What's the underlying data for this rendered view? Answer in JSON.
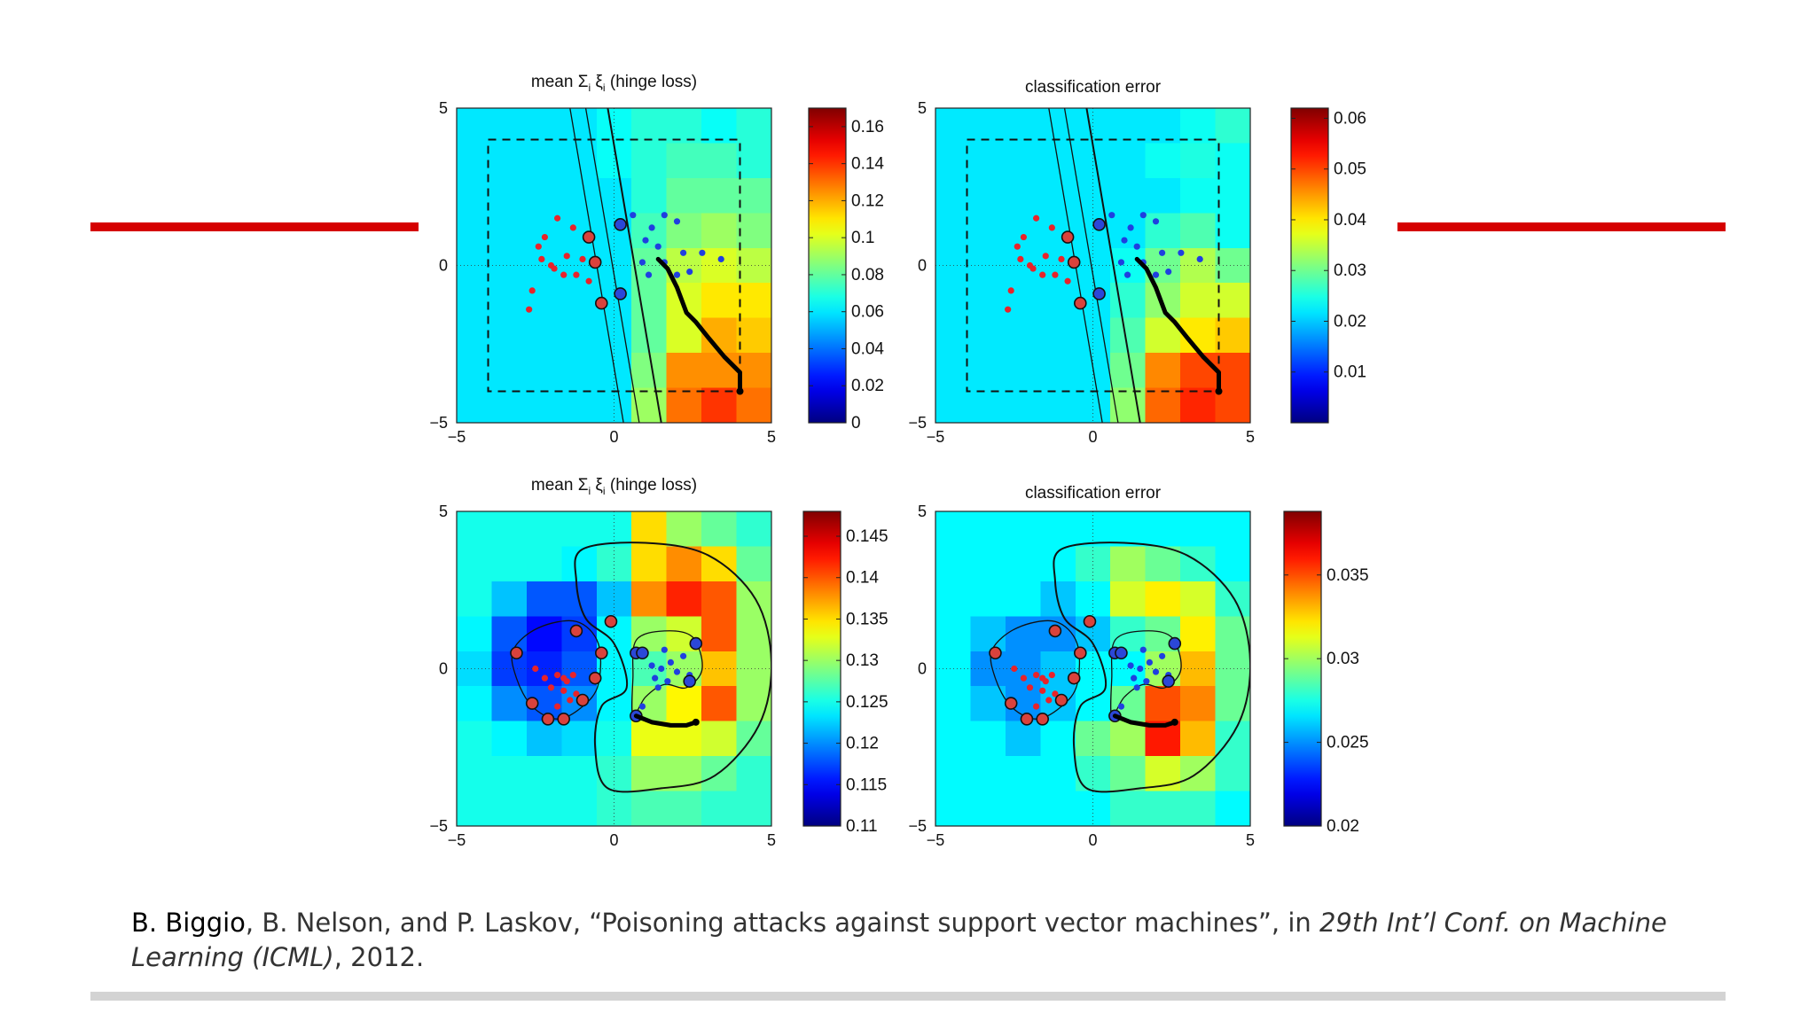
{
  "decoration": {
    "accent_color": "#d50000",
    "bar_color": "#d3d3d3"
  },
  "chart_data": [
    {
      "type": "heatmap",
      "title": "mean Σ",
      "title_sub1": "i",
      "title_mid": " ξ",
      "title_sub2": "i",
      "title_tail": " (hinge loss)",
      "xlim": [
        -5,
        5
      ],
      "ylim": [
        -5,
        5
      ],
      "xticks": [
        "−5",
        "0",
        "5"
      ],
      "yticks": [
        "5",
        "0",
        "−5"
      ],
      "colorbar": {
        "min": 0,
        "max": 0.17,
        "ticks": [
          "0.16",
          "0.14",
          "0.12",
          "0.1",
          "0.08",
          "0.06",
          "0.04",
          "0.02",
          "0"
        ],
        "tick_values": [
          0.16,
          0.14,
          0.12,
          0.1,
          0.08,
          0.06,
          0.04,
          0.02,
          0
        ]
      },
      "kernel": "linear",
      "search_box": {
        "x": [
          -4,
          4
        ],
        "y": [
          -4,
          4
        ]
      },
      "boundary_lines": [
        {
          "x_at_top": -0.2,
          "x_at_bottom": 1.5
        },
        {
          "x_at_top": -1.4,
          "x_at_bottom": 0.3
        },
        {
          "x_at_top": -0.9,
          "x_at_bottom": 0.8
        }
      ],
      "class_red": [
        [
          -2.4,
          0.6
        ],
        [
          -2.2,
          0.9
        ],
        [
          -1.8,
          1.5
        ],
        [
          -1.3,
          1.2
        ],
        [
          -2.0,
          0.0
        ],
        [
          -1.6,
          -0.3
        ],
        [
          -2.6,
          -0.8
        ],
        [
          -2.7,
          -1.4
        ],
        [
          -1.2,
          -0.3
        ],
        [
          -1.0,
          0.2
        ],
        [
          -0.8,
          -0.5
        ],
        [
          -2.3,
          0.2
        ],
        [
          -1.9,
          -0.1
        ],
        [
          -1.5,
          0.3
        ]
      ],
      "class_blue": [
        [
          0.6,
          1.6
        ],
        [
          1.2,
          1.2
        ],
        [
          1.6,
          1.6
        ],
        [
          2.0,
          1.4
        ],
        [
          1.0,
          0.8
        ],
        [
          1.4,
          0.6
        ],
        [
          2.2,
          0.4
        ],
        [
          2.8,
          0.4
        ],
        [
          3.4,
          0.2
        ],
        [
          0.9,
          0.1
        ],
        [
          1.6,
          0.1
        ],
        [
          2.0,
          -0.3
        ],
        [
          2.4,
          -0.2
        ],
        [
          1.1,
          -0.3
        ]
      ],
      "support_vectors": [
        [
          -0.8,
          0.9
        ],
        [
          -0.6,
          0.1
        ],
        [
          -0.4,
          -1.2
        ],
        [
          0.2,
          1.3
        ],
        [
          0.2,
          -0.9
        ]
      ],
      "attack_path": [
        [
          1.4,
          0.2
        ],
        [
          1.7,
          -0.1
        ],
        [
          2.0,
          -0.7
        ],
        [
          2.3,
          -1.5
        ],
        [
          2.6,
          -1.8
        ],
        [
          3.0,
          -2.3
        ],
        [
          3.5,
          -2.9
        ],
        [
          4.0,
          -3.4
        ],
        [
          4.0,
          -4.0
        ]
      ],
      "field": [
        [
          0.06,
          0.06,
          0.06,
          0.06,
          0.065,
          0.07,
          0.07,
          0.065,
          0.07
        ],
        [
          0.06,
          0.06,
          0.06,
          0.06,
          0.065,
          0.07,
          0.075,
          0.075,
          0.07
        ],
        [
          0.06,
          0.06,
          0.06,
          0.06,
          0.06,
          0.07,
          0.08,
          0.08,
          0.08
        ],
        [
          0.06,
          0.06,
          0.06,
          0.06,
          0.06,
          0.075,
          0.085,
          0.09,
          0.085
        ],
        [
          0.06,
          0.06,
          0.06,
          0.06,
          0.06,
          0.08,
          0.095,
          0.1,
          0.095
        ],
        [
          0.06,
          0.06,
          0.06,
          0.06,
          0.06,
          0.08,
          0.1,
          0.11,
          0.11
        ],
        [
          0.06,
          0.06,
          0.06,
          0.06,
          0.06,
          0.08,
          0.1,
          0.12,
          0.115
        ],
        [
          0.06,
          0.06,
          0.06,
          0.06,
          0.06,
          0.085,
          0.125,
          0.125,
          0.125
        ],
        [
          0.06,
          0.06,
          0.06,
          0.06,
          0.06,
          0.09,
          0.13,
          0.14,
          0.13
        ]
      ]
    },
    {
      "type": "heatmap",
      "title": "classification error",
      "xlim": [
        -5,
        5
      ],
      "ylim": [
        -5,
        5
      ],
      "xticks": [
        "−5",
        "0",
        "5"
      ],
      "yticks": [
        "5",
        "0",
        "−5"
      ],
      "colorbar": {
        "min": 0,
        "max": 0.062,
        "ticks": [
          "0.06",
          "0.05",
          "0.04",
          "0.03",
          "0.02",
          "0.01"
        ],
        "tick_values": [
          0.06,
          0.05,
          0.04,
          0.03,
          0.02,
          0.01
        ]
      },
      "kernel": "linear",
      "search_box": {
        "x": [
          -4,
          4
        ],
        "y": [
          -4,
          4
        ]
      },
      "boundary_lines": [
        {
          "x_at_top": -0.2,
          "x_at_bottom": 1.5
        },
        {
          "x_at_top": -1.4,
          "x_at_bottom": 0.3
        },
        {
          "x_at_top": -0.9,
          "x_at_bottom": 0.8
        }
      ],
      "class_red": [
        [
          -2.4,
          0.6
        ],
        [
          -2.2,
          0.9
        ],
        [
          -1.8,
          1.5
        ],
        [
          -1.3,
          1.2
        ],
        [
          -2.0,
          0.0
        ],
        [
          -1.6,
          -0.3
        ],
        [
          -2.6,
          -0.8
        ],
        [
          -2.7,
          -1.4
        ],
        [
          -1.2,
          -0.3
        ],
        [
          -1.0,
          0.2
        ],
        [
          -0.8,
          -0.5
        ],
        [
          -2.3,
          0.2
        ],
        [
          -1.9,
          -0.1
        ],
        [
          -1.5,
          0.3
        ]
      ],
      "class_blue": [
        [
          0.6,
          1.6
        ],
        [
          1.2,
          1.2
        ],
        [
          1.6,
          1.6
        ],
        [
          2.0,
          1.4
        ],
        [
          1.0,
          0.8
        ],
        [
          1.4,
          0.6
        ],
        [
          2.2,
          0.4
        ],
        [
          2.8,
          0.4
        ],
        [
          3.4,
          0.2
        ],
        [
          0.9,
          0.1
        ],
        [
          1.6,
          0.1
        ],
        [
          2.0,
          -0.3
        ],
        [
          2.4,
          -0.2
        ],
        [
          1.1,
          -0.3
        ]
      ],
      "support_vectors": [
        [
          -0.8,
          0.9
        ],
        [
          -0.6,
          0.1
        ],
        [
          -0.4,
          -1.2
        ],
        [
          0.2,
          1.3
        ],
        [
          0.2,
          -0.9
        ]
      ],
      "attack_path": [
        [
          1.4,
          0.2
        ],
        [
          1.7,
          -0.1
        ],
        [
          2.0,
          -0.7
        ],
        [
          2.3,
          -1.5
        ],
        [
          2.6,
          -1.8
        ],
        [
          3.0,
          -2.3
        ],
        [
          3.5,
          -2.9
        ],
        [
          4.0,
          -3.4
        ],
        [
          4.0,
          -4.0
        ]
      ],
      "field": [
        [
          0.022,
          0.022,
          0.022,
          0.022,
          0.022,
          0.022,
          0.022,
          0.024,
          0.026
        ],
        [
          0.022,
          0.022,
          0.022,
          0.022,
          0.022,
          0.022,
          0.024,
          0.025,
          0.024
        ],
        [
          0.022,
          0.022,
          0.022,
          0.022,
          0.022,
          0.022,
          0.022,
          0.024,
          0.024
        ],
        [
          0.022,
          0.022,
          0.022,
          0.022,
          0.022,
          0.022,
          0.026,
          0.028,
          0.024
        ],
        [
          0.022,
          0.022,
          0.022,
          0.022,
          0.022,
          0.024,
          0.03,
          0.034,
          0.03
        ],
        [
          0.022,
          0.022,
          0.022,
          0.022,
          0.022,
          0.026,
          0.032,
          0.036,
          0.036
        ],
        [
          0.022,
          0.022,
          0.022,
          0.022,
          0.022,
          0.028,
          0.036,
          0.04,
          0.042
        ],
        [
          0.022,
          0.022,
          0.022,
          0.022,
          0.022,
          0.03,
          0.046,
          0.05,
          0.05
        ],
        [
          0.022,
          0.022,
          0.022,
          0.022,
          0.022,
          0.032,
          0.048,
          0.052,
          0.05
        ]
      ]
    },
    {
      "type": "heatmap",
      "title": "mean Σ",
      "title_sub1": "i",
      "title_mid": " ξ",
      "title_sub2": "i",
      "title_tail": " (hinge loss)",
      "xlim": [
        -5,
        5
      ],
      "ylim": [
        -5,
        5
      ],
      "xticks": [
        "−5",
        "0",
        "5"
      ],
      "yticks": [
        "5",
        "0",
        "−5"
      ],
      "colorbar": {
        "min": 0.11,
        "max": 0.148,
        "ticks": [
          "0.145",
          "0.14",
          "0.135",
          "0.13",
          "0.125",
          "0.12",
          "0.115",
          "0.11"
        ],
        "tick_values": [
          0.145,
          0.14,
          0.135,
          0.13,
          0.125,
          0.12,
          0.115,
          0.11
        ]
      },
      "kernel": "rbf",
      "class_red": [
        [
          -2.5,
          0.0
        ],
        [
          -2.2,
          -0.3
        ],
        [
          -1.8,
          -0.2
        ],
        [
          -1.5,
          -0.4
        ],
        [
          -1.3,
          -0.2
        ],
        [
          -2.0,
          -0.6
        ],
        [
          -1.6,
          -0.7
        ],
        [
          -1.2,
          -0.8
        ],
        [
          -1.4,
          -1.0
        ],
        [
          -1.8,
          -1.2
        ],
        [
          -1.2,
          1.2
        ],
        [
          -1.6,
          -0.3
        ]
      ],
      "class_blue": [
        [
          1.2,
          0.1
        ],
        [
          1.5,
          0.0
        ],
        [
          1.8,
          0.2
        ],
        [
          2.0,
          -0.1
        ],
        [
          1.3,
          -0.3
        ],
        [
          1.7,
          -0.4
        ],
        [
          1.0,
          0.5
        ],
        [
          2.2,
          0.4
        ],
        [
          1.6,
          0.6
        ],
        [
          1.4,
          -0.6
        ],
        [
          2.4,
          -0.2
        ],
        [
          0.9,
          -1.2
        ]
      ],
      "support_vectors": [
        [
          -3.1,
          0.5
        ],
        [
          -2.6,
          -1.1
        ],
        [
          -2.1,
          -1.6
        ],
        [
          -1.6,
          -1.6
        ],
        [
          -1.0,
          -1.0
        ],
        [
          -0.6,
          -0.3
        ],
        [
          -0.4,
          0.5
        ],
        [
          -1.2,
          1.2
        ],
        [
          -0.1,
          1.5
        ],
        [
          0.7,
          0.5
        ],
        [
          0.9,
          0.5
        ],
        [
          2.6,
          0.8
        ],
        [
          2.4,
          -0.4
        ],
        [
          0.7,
          -1.5
        ]
      ],
      "attack_path": [
        [
          0.7,
          -1.5
        ],
        [
          1.2,
          -1.7
        ],
        [
          1.8,
          -1.8
        ],
        [
          2.3,
          -1.8
        ],
        [
          2.6,
          -1.7
        ]
      ],
      "field": [
        [
          0.125,
          0.125,
          0.125,
          0.125,
          0.125,
          0.135,
          0.13,
          0.128,
          0.126
        ],
        [
          0.125,
          0.125,
          0.125,
          0.124,
          0.126,
          0.135,
          0.138,
          0.135,
          0.128
        ],
        [
          0.125,
          0.122,
          0.118,
          0.118,
          0.122,
          0.138,
          0.142,
          0.14,
          0.13
        ],
        [
          0.124,
          0.118,
          0.115,
          0.117,
          0.124,
          0.13,
          0.132,
          0.14,
          0.13
        ],
        [
          0.123,
          0.117,
          0.116,
          0.118,
          0.124,
          0.127,
          0.13,
          0.136,
          0.13
        ],
        [
          0.124,
          0.12,
          0.118,
          0.12,
          0.124,
          0.13,
          0.134,
          0.14,
          0.13
        ],
        [
          0.125,
          0.124,
          0.122,
          0.123,
          0.125,
          0.133,
          0.133,
          0.132,
          0.128
        ],
        [
          0.125,
          0.125,
          0.125,
          0.125,
          0.126,
          0.13,
          0.13,
          0.128,
          0.126
        ],
        [
          0.125,
          0.125,
          0.125,
          0.125,
          0.126,
          0.127,
          0.127,
          0.126,
          0.126
        ]
      ]
    },
    {
      "type": "heatmap",
      "title": "classification error",
      "xlim": [
        -5,
        5
      ],
      "ylim": [
        -5,
        5
      ],
      "xticks": [
        "−5",
        "0",
        "5"
      ],
      "yticks": [
        "5",
        "0",
        "−5"
      ],
      "colorbar": {
        "min": 0.02,
        "max": 0.0388,
        "ticks": [
          "0.035",
          "0.03",
          "0.025",
          "0.02"
        ],
        "tick_values": [
          0.035,
          0.03,
          0.025,
          0.02
        ]
      },
      "kernel": "rbf",
      "class_red": [
        [
          -2.5,
          0.0
        ],
        [
          -2.2,
          -0.3
        ],
        [
          -1.8,
          -0.2
        ],
        [
          -1.5,
          -0.4
        ],
        [
          -1.3,
          -0.2
        ],
        [
          -2.0,
          -0.6
        ],
        [
          -1.6,
          -0.7
        ],
        [
          -1.2,
          -0.8
        ],
        [
          -1.4,
          -1.0
        ],
        [
          -1.8,
          -1.2
        ],
        [
          -1.2,
          1.2
        ],
        [
          -1.6,
          -0.3
        ]
      ],
      "class_blue": [
        [
          1.2,
          0.1
        ],
        [
          1.5,
          0.0
        ],
        [
          1.8,
          0.2
        ],
        [
          2.0,
          -0.1
        ],
        [
          1.3,
          -0.3
        ],
        [
          1.7,
          -0.4
        ],
        [
          1.0,
          0.5
        ],
        [
          2.2,
          0.4
        ],
        [
          1.6,
          0.6
        ],
        [
          1.4,
          -0.6
        ],
        [
          2.4,
          -0.2
        ],
        [
          0.9,
          -1.2
        ]
      ],
      "support_vectors": [
        [
          -3.1,
          0.5
        ],
        [
          -2.6,
          -1.1
        ],
        [
          -2.1,
          -1.6
        ],
        [
          -1.6,
          -1.6
        ],
        [
          -1.0,
          -1.0
        ],
        [
          -0.6,
          -0.3
        ],
        [
          -0.4,
          0.5
        ],
        [
          -1.2,
          1.2
        ],
        [
          -0.1,
          1.5
        ],
        [
          0.7,
          0.5
        ],
        [
          0.9,
          0.5
        ],
        [
          2.6,
          0.8
        ],
        [
          2.4,
          -0.4
        ],
        [
          0.7,
          -1.5
        ]
      ],
      "attack_path": [
        [
          0.7,
          -1.5
        ],
        [
          1.2,
          -1.7
        ],
        [
          1.8,
          -1.8
        ],
        [
          2.3,
          -1.8
        ],
        [
          2.6,
          -1.7
        ]
      ],
      "field": [
        [
          0.027,
          0.027,
          0.027,
          0.027,
          0.027,
          0.027,
          0.027,
          0.027,
          0.027
        ],
        [
          0.027,
          0.027,
          0.027,
          0.027,
          0.028,
          0.03,
          0.029,
          0.028,
          0.027
        ],
        [
          0.027,
          0.027,
          0.027,
          0.026,
          0.027,
          0.031,
          0.032,
          0.031,
          0.028
        ],
        [
          0.027,
          0.026,
          0.025,
          0.025,
          0.026,
          0.028,
          0.029,
          0.032,
          0.029
        ],
        [
          0.027,
          0.025,
          0.025,
          0.026,
          0.027,
          0.027,
          0.03,
          0.033,
          0.029
        ],
        [
          0.027,
          0.026,
          0.025,
          0.026,
          0.027,
          0.029,
          0.035,
          0.034,
          0.029
        ],
        [
          0.027,
          0.027,
          0.026,
          0.027,
          0.029,
          0.03,
          0.036,
          0.033,
          0.028
        ],
        [
          0.027,
          0.027,
          0.027,
          0.027,
          0.028,
          0.029,
          0.031,
          0.03,
          0.028
        ],
        [
          0.027,
          0.027,
          0.027,
          0.027,
          0.027,
          0.028,
          0.028,
          0.028,
          0.027
        ]
      ]
    }
  ],
  "citation": {
    "author_highlight": "B. Biggio",
    "text_part1": ", B. Nelson, and P. Laskov, “Poisoning attacks against support vector machines”, in ",
    "venue": "29th Int’l Conf. on Machine Learning (ICML)",
    "text_part2": ", 2012."
  }
}
